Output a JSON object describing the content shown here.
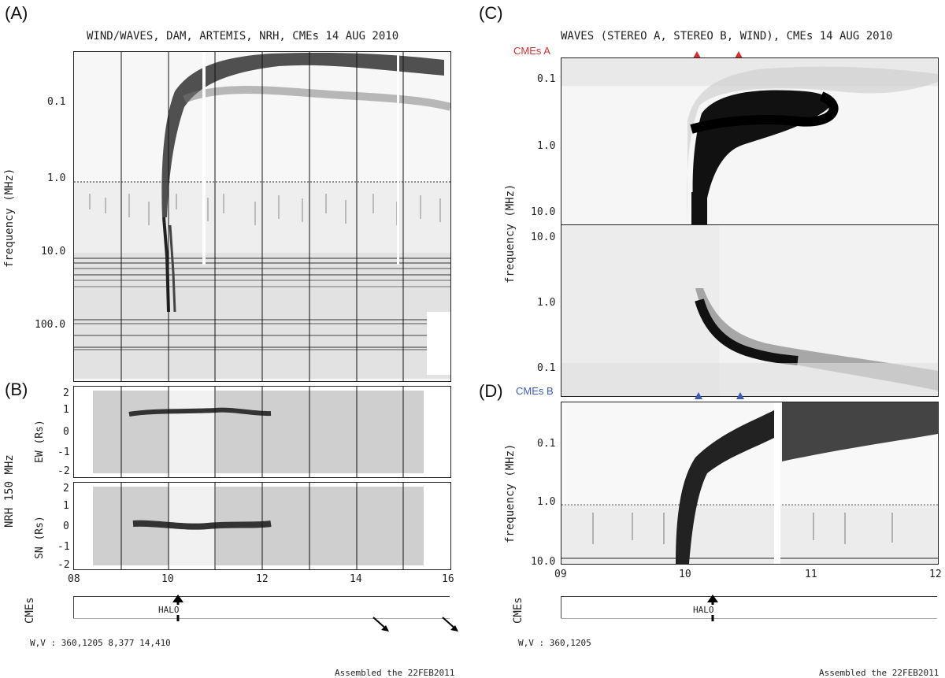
{
  "panel_letters": {
    "a": "(A)",
    "b": "(B)",
    "c": "(C)",
    "d": "(D)"
  },
  "left": {
    "title": "WIND/WAVES, DAM, ARTEMIS, NRH, CMEs   14 AUG 2010",
    "freq_ylabel": "frequency (MHz)",
    "freq_ticks": [
      "0.1",
      "1.0",
      "10.0",
      "100.0"
    ],
    "nrh_label": "NRH 150 MHz",
    "ew_label": "EW (Rs)",
    "sn_label": "SN (Rs)",
    "pos_ticks": [
      "2",
      "1",
      "0",
      "-1",
      "-2"
    ],
    "x_ticks": [
      "08",
      "10",
      "12",
      "14",
      "16"
    ],
    "cmes_label": "CMEs",
    "halo": "HALO",
    "footer_wv": "W,V :  360,1205   8,377   14,410",
    "assembled": "Assembled the 22FEB2011"
  },
  "right": {
    "title": "WAVES (STEREO A, STEREO B, WIND), CMEs   14 AUG 2010",
    "cmes_a": "CMEs A",
    "cmes_b": "CMEs B",
    "freq_ylabel_c": "frequency (MHz)",
    "freq_ylabel_d": "frequency (MHz)",
    "c_top_ticks": [
      "0.1",
      "1.0",
      "10.0"
    ],
    "c_bottom_ticks": [
      "10.0",
      "1.0",
      "0.1"
    ],
    "d_ticks": [
      "0.1",
      "1.0",
      "10.0"
    ],
    "x_ticks": [
      "09",
      "10",
      "11",
      "12"
    ],
    "cmes_label": "CMEs",
    "halo": "HALO",
    "footer_wv": "W,V :  360,1205",
    "assembled": "Assembled the 22FEB2011"
  },
  "colors": {
    "cme_a": "#d03030",
    "cme_b": "#3a5cb0",
    "ink": "#111111"
  }
}
